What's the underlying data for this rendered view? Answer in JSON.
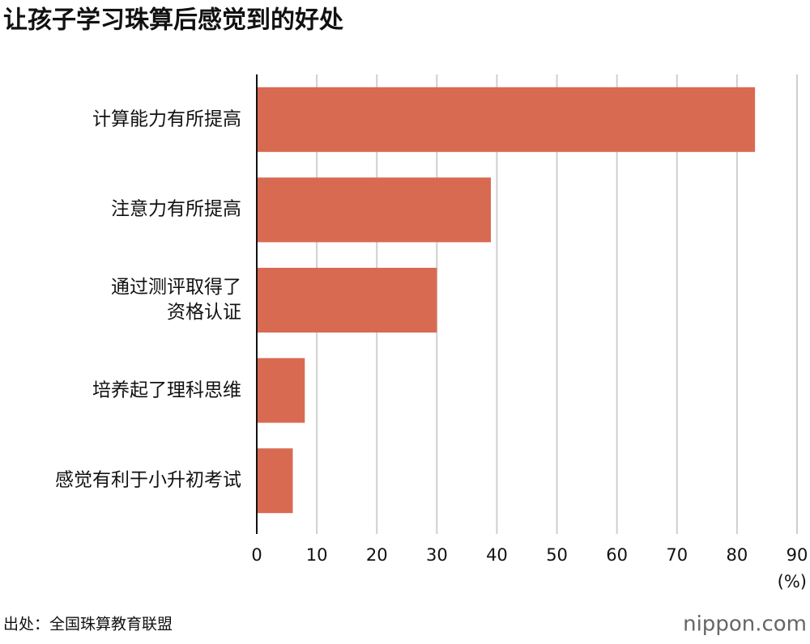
{
  "chart_data": {
    "type": "bar",
    "orientation": "horizontal",
    "title": "让孩子学习珠算后感觉到的好处",
    "categories": [
      "计算能力有所提高",
      "注意力有所提高",
      "通过测评取得了\n资格认证",
      "培养起了理科思维",
      "感觉有利于小升初考试"
    ],
    "values": [
      83,
      39,
      30,
      8,
      6
    ],
    "color": "#d96a52",
    "xlim": [
      0,
      90
    ],
    "xticks": [
      0,
      10,
      20,
      30,
      40,
      50,
      60,
      70,
      80,
      90
    ],
    "x_unit": "(%)",
    "grid": true,
    "source": "出处：全国珠算教育联盟",
    "logo": "nippon.com"
  }
}
